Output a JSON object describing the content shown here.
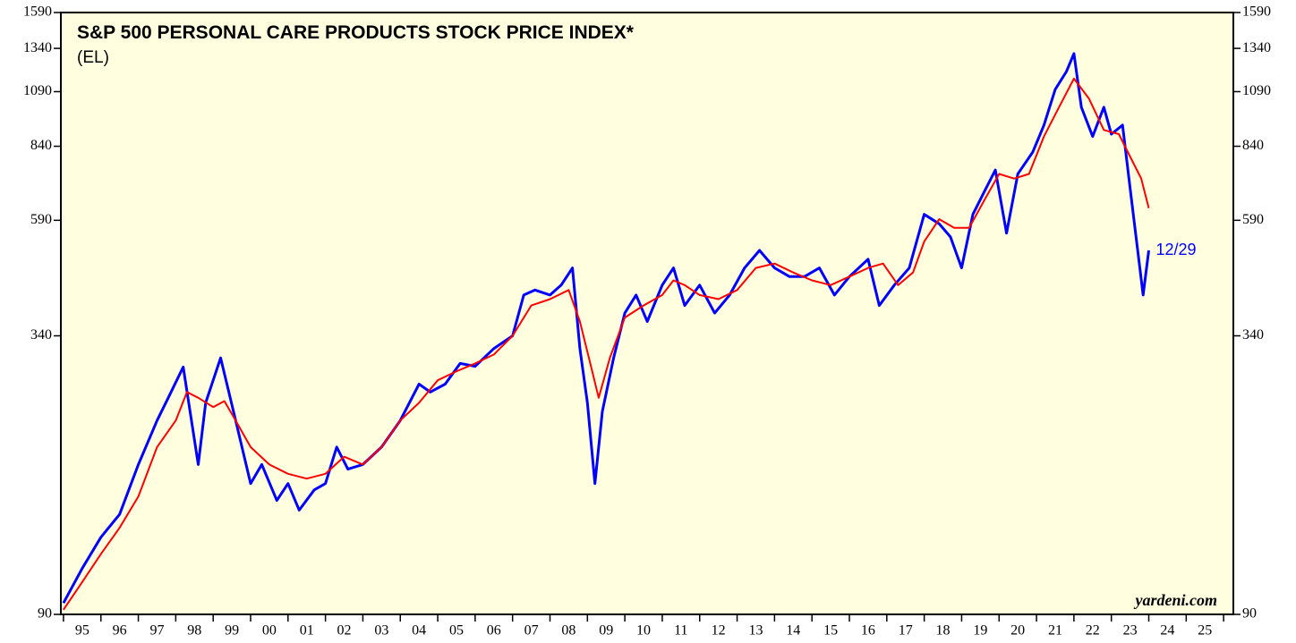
{
  "chart_data": {
    "type": "line",
    "title": "S&P 500 PERSONAL CARE PRODUCTS STOCK PRICE INDEX*",
    "subtitle": "(EL)",
    "watermark": "yardeni.com",
    "annotation": "12/29",
    "log_scale": true,
    "xlim": [
      1994.93,
      2026.26
    ],
    "ylim": [
      90,
      1590
    ],
    "yticks": [
      90,
      340,
      590,
      840,
      1090,
      1340,
      1590
    ],
    "xticks": [
      {
        "value": 1995.5,
        "label": "95"
      },
      {
        "value": 1996.5,
        "label": "96"
      },
      {
        "value": 1997.5,
        "label": "97"
      },
      {
        "value": 1998.5,
        "label": "98"
      },
      {
        "value": 1999.5,
        "label": "99"
      },
      {
        "value": 2000.5,
        "label": "00"
      },
      {
        "value": 2001.5,
        "label": "01"
      },
      {
        "value": 2002.5,
        "label": "02"
      },
      {
        "value": 2003.5,
        "label": "03"
      },
      {
        "value": 2004.5,
        "label": "04"
      },
      {
        "value": 2005.5,
        "label": "05"
      },
      {
        "value": 2006.5,
        "label": "06"
      },
      {
        "value": 2007.5,
        "label": "07"
      },
      {
        "value": 2008.5,
        "label": "08"
      },
      {
        "value": 2009.5,
        "label": "09"
      },
      {
        "value": 2010.5,
        "label": "10"
      },
      {
        "value": 2011.5,
        "label": "11"
      },
      {
        "value": 2012.5,
        "label": "12"
      },
      {
        "value": 2013.5,
        "label": "13"
      },
      {
        "value": 2014.5,
        "label": "14"
      },
      {
        "value": 2015.5,
        "label": "15"
      },
      {
        "value": 2016.5,
        "label": "16"
      },
      {
        "value": 2017.5,
        "label": "17"
      },
      {
        "value": 2018.5,
        "label": "18"
      },
      {
        "value": 2019.5,
        "label": "19"
      },
      {
        "value": 2020.5,
        "label": "20"
      },
      {
        "value": 2021.5,
        "label": "21"
      },
      {
        "value": 2022.5,
        "label": "22"
      },
      {
        "value": 2023.5,
        "label": "23"
      },
      {
        "value": 2024.5,
        "label": "24"
      },
      {
        "value": 2025.5,
        "label": "25"
      }
    ],
    "series": [
      {
        "color": "#0000ff",
        "width": 3,
        "x": [
          1995.0,
          1995.5,
          1996.0,
          1996.5,
          1997.0,
          1997.5,
          1997.8,
          1998.2,
          1998.6,
          1998.8,
          1999.2,
          1999.6,
          2000.0,
          2000.3,
          2000.7,
          2001.0,
          2001.3,
          2001.7,
          2002.0,
          2002.3,
          2002.6,
          2003.0,
          2003.5,
          2004.0,
          2004.5,
          2004.8,
          2005.2,
          2005.6,
          2006.0,
          2006.5,
          2007.0,
          2007.3,
          2007.6,
          2008.0,
          2008.3,
          2008.6,
          2008.8,
          2009.0,
          2009.2,
          2009.4,
          2009.7,
          2010.0,
          2010.3,
          2010.6,
          2011.0,
          2011.3,
          2011.6,
          2012.0,
          2012.4,
          2012.8,
          2013.2,
          2013.6,
          2014.0,
          2014.4,
          2014.8,
          2015.2,
          2015.6,
          2016.0,
          2016.5,
          2016.8,
          2017.2,
          2017.6,
          2018.0,
          2018.4,
          2018.7,
          2019.0,
          2019.3,
          2019.6,
          2019.9,
          2020.2,
          2020.5,
          2020.9,
          2021.2,
          2021.5,
          2021.8,
          2022.0,
          2022.2,
          2022.5,
          2022.8,
          2023.0,
          2023.3,
          2023.5,
          2023.85,
          2024.0
        ],
        "values": [
          95,
          112,
          130,
          145,
          184,
          227,
          253,
          293,
          184,
          247,
          306,
          227,
          168,
          184,
          155,
          168,
          148,
          163,
          168,
          200,
          180,
          184,
          200,
          227,
          270,
          260,
          270,
          298,
          294,
          320,
          340,
          413,
          423,
          413,
          433,
          470,
          320,
          247,
          168,
          237,
          306,
          379,
          413,
          364,
          433,
          470,
          393,
          433,
          379,
          413,
          470,
          511,
          470,
          451,
          451,
          470,
          413,
          451,
          490,
          393,
          433,
          470,
          607,
          580,
          545,
          470,
          607,
          675,
          750,
          555,
          736,
          817,
          929,
          1102,
          1200,
          1307,
          1012,
          880,
          1012,
          890,
          929,
          689,
          413,
          511
        ]
      },
      {
        "color": "#ff0000",
        "width": 2,
        "x": [
          1995.0,
          1995.5,
          1996.0,
          1996.5,
          1997.0,
          1997.5,
          1998.0,
          1998.3,
          1998.6,
          1999.0,
          1999.3,
          1999.6,
          2000.0,
          2000.5,
          2001.0,
          2001.5,
          2002.0,
          2002.5,
          2003.0,
          2003.5,
          2004.0,
          2004.5,
          2005.0,
          2005.5,
          2006.0,
          2006.5,
          2007.0,
          2007.5,
          2008.0,
          2008.5,
          2008.8,
          2009.1,
          2009.3,
          2009.6,
          2010.0,
          2010.5,
          2011.0,
          2011.3,
          2011.6,
          2012.0,
          2012.5,
          2013.0,
          2013.5,
          2014.0,
          2014.5,
          2015.0,
          2015.5,
          2016.0,
          2016.5,
          2016.9,
          2017.3,
          2017.7,
          2018.0,
          2018.4,
          2018.8,
          2019.2,
          2019.6,
          2020.0,
          2020.4,
          2020.8,
          2021.2,
          2021.6,
          2022.0,
          2022.4,
          2022.8,
          2023.2,
          2023.5,
          2023.8,
          2024.0
        ],
        "values": [
          92,
          105,
          120,
          136,
          158,
          200,
          227,
          260,
          253,
          242,
          249,
          227,
          200,
          184,
          176,
          172,
          176,
          191,
          184,
          200,
          227,
          247,
          275,
          287,
          298,
          311,
          340,
          393,
          405,
          423,
          364,
          293,
          253,
          306,
          371,
          393,
          413,
          443,
          433,
          413,
          405,
          423,
          470,
          480,
          460,
          443,
          433,
          451,
          470,
          480,
          433,
          460,
          533,
          593,
          569,
          569,
          648,
          736,
          720,
          736,
          880,
          1012,
          1160,
          1055,
          908,
          890,
          800,
          720,
          625
        ]
      }
    ]
  }
}
